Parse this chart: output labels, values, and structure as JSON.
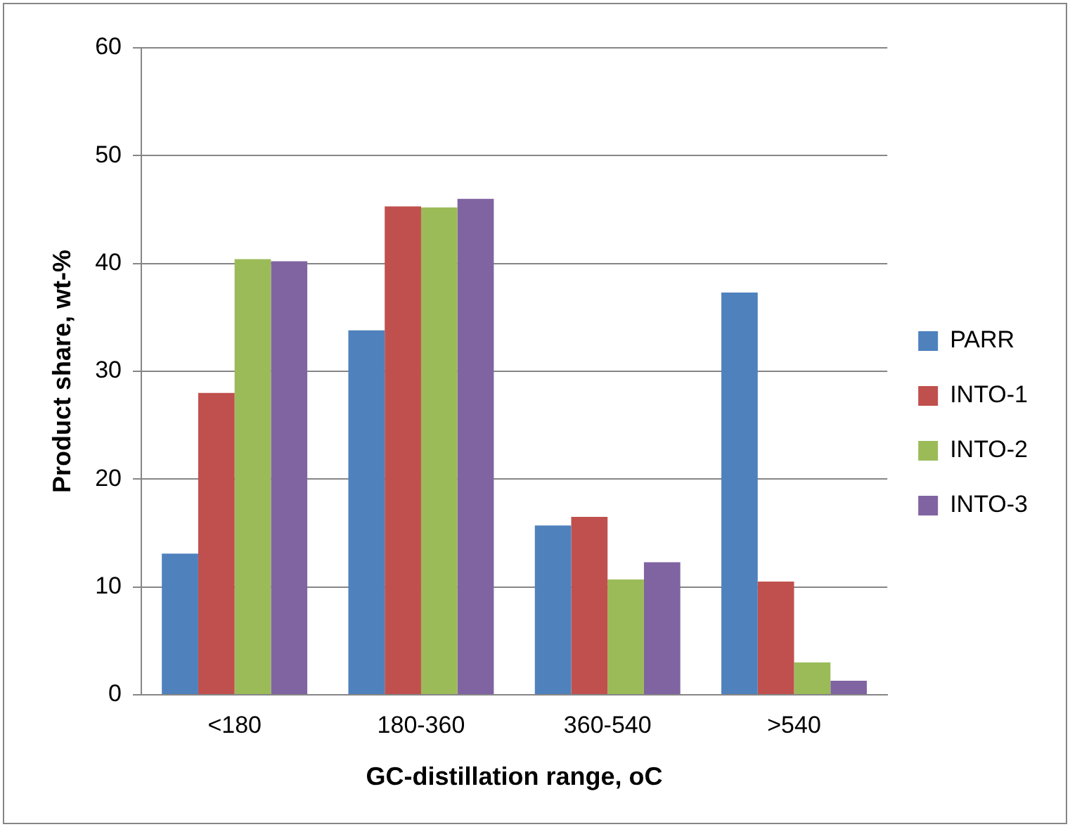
{
  "chart_data": {
    "type": "bar",
    "xlabel": "GC-distillation range, oC",
    "ylabel": "Product share, wt-%",
    "categories": [
      "<180",
      "180-360",
      "360-540",
      ">540"
    ],
    "series": [
      {
        "name": "PARR",
        "color": "#4f81bd",
        "values": [
          13.1,
          33.8,
          15.7,
          37.3
        ]
      },
      {
        "name": "INTO-1",
        "color": "#c0504d",
        "values": [
          28.0,
          45.3,
          16.5,
          10.5
        ]
      },
      {
        "name": "INTO-2",
        "color": "#9bbb59",
        "values": [
          40.4,
          45.2,
          10.7,
          3.0
        ]
      },
      {
        "name": "INTO-3",
        "color": "#8064a2",
        "values": [
          40.2,
          46.0,
          12.3,
          1.3
        ]
      }
    ],
    "ylim": [
      0,
      60
    ],
    "yticks": [
      0,
      10,
      20,
      30,
      40,
      50,
      60
    ],
    "grid": "y",
    "legend": "right"
  }
}
